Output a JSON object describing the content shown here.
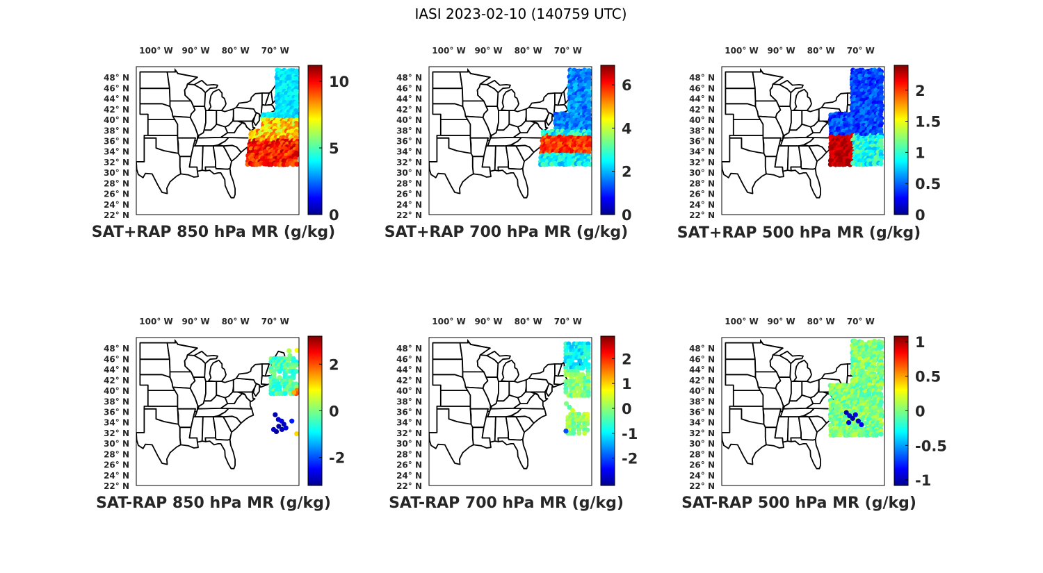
{
  "figure_title": "IASI 2023-02-10 (140759 UTC)",
  "lon_ticks": [
    "100° W",
    "90° W",
    "80° W",
    "70° W"
  ],
  "lat_ticks": [
    "48° N",
    "46° N",
    "44° N",
    "42° N",
    "40° N",
    "38° N",
    "36° N",
    "34° N",
    "32° N",
    "30° N",
    "28° N",
    "26° N",
    "24° N",
    "22° N"
  ],
  "colormap": "jet",
  "chart_data": [
    {
      "type": "scatter",
      "title": "SAT+RAP 850 hPa MR (g/kg)",
      "colorbar": {
        "range": [
          0,
          11.2
        ],
        "ticks": [
          0,
          5,
          10
        ],
        "tick_labels": [
          "0",
          "5",
          "10"
        ]
      }
    },
    {
      "type": "scatter",
      "title": "SAT+RAP 700 hPa MR (g/kg)",
      "colorbar": {
        "range": [
          0,
          6.9
        ],
        "ticks": [
          0,
          2,
          4,
          6
        ],
        "tick_labels": [
          "0",
          "2",
          "4",
          "6"
        ]
      }
    },
    {
      "type": "scatter",
      "title": "SAT+RAP 500 hPa MR (g/kg)",
      "colorbar": {
        "range": [
          0,
          2.4
        ],
        "ticks": [
          0,
          0.5,
          1,
          1.5,
          2
        ],
        "tick_labels": [
          "0",
          "0.5",
          "1",
          "1.5",
          "2"
        ]
      }
    },
    {
      "type": "scatter",
      "title": "SAT-RAP 850 hPa MR (g/kg)",
      "colorbar": {
        "range": [
          -3.2,
          3.2
        ],
        "ticks": [
          -2,
          0,
          2
        ],
        "tick_labels": [
          "-2",
          "0",
          "2"
        ]
      }
    },
    {
      "type": "scatter",
      "title": "SAT-RAP 700 hPa MR (g/kg)",
      "colorbar": {
        "range": [
          -3.1,
          2.9
        ],
        "ticks": [
          -2,
          -1,
          0,
          1,
          2
        ],
        "tick_labels": [
          "-2",
          "-1",
          "0",
          "1",
          "2"
        ]
      }
    },
    {
      "type": "scatter",
      "title": "SAT-RAP 500 hPa MR (g/kg)",
      "colorbar": {
        "range": [
          -1.08,
          1.08
        ],
        "ticks": [
          -1,
          -0.5,
          0,
          0.5,
          1
        ],
        "tick_labels": [
          "-1",
          "-0.5",
          "0",
          "0.5",
          "1"
        ]
      }
    }
  ]
}
